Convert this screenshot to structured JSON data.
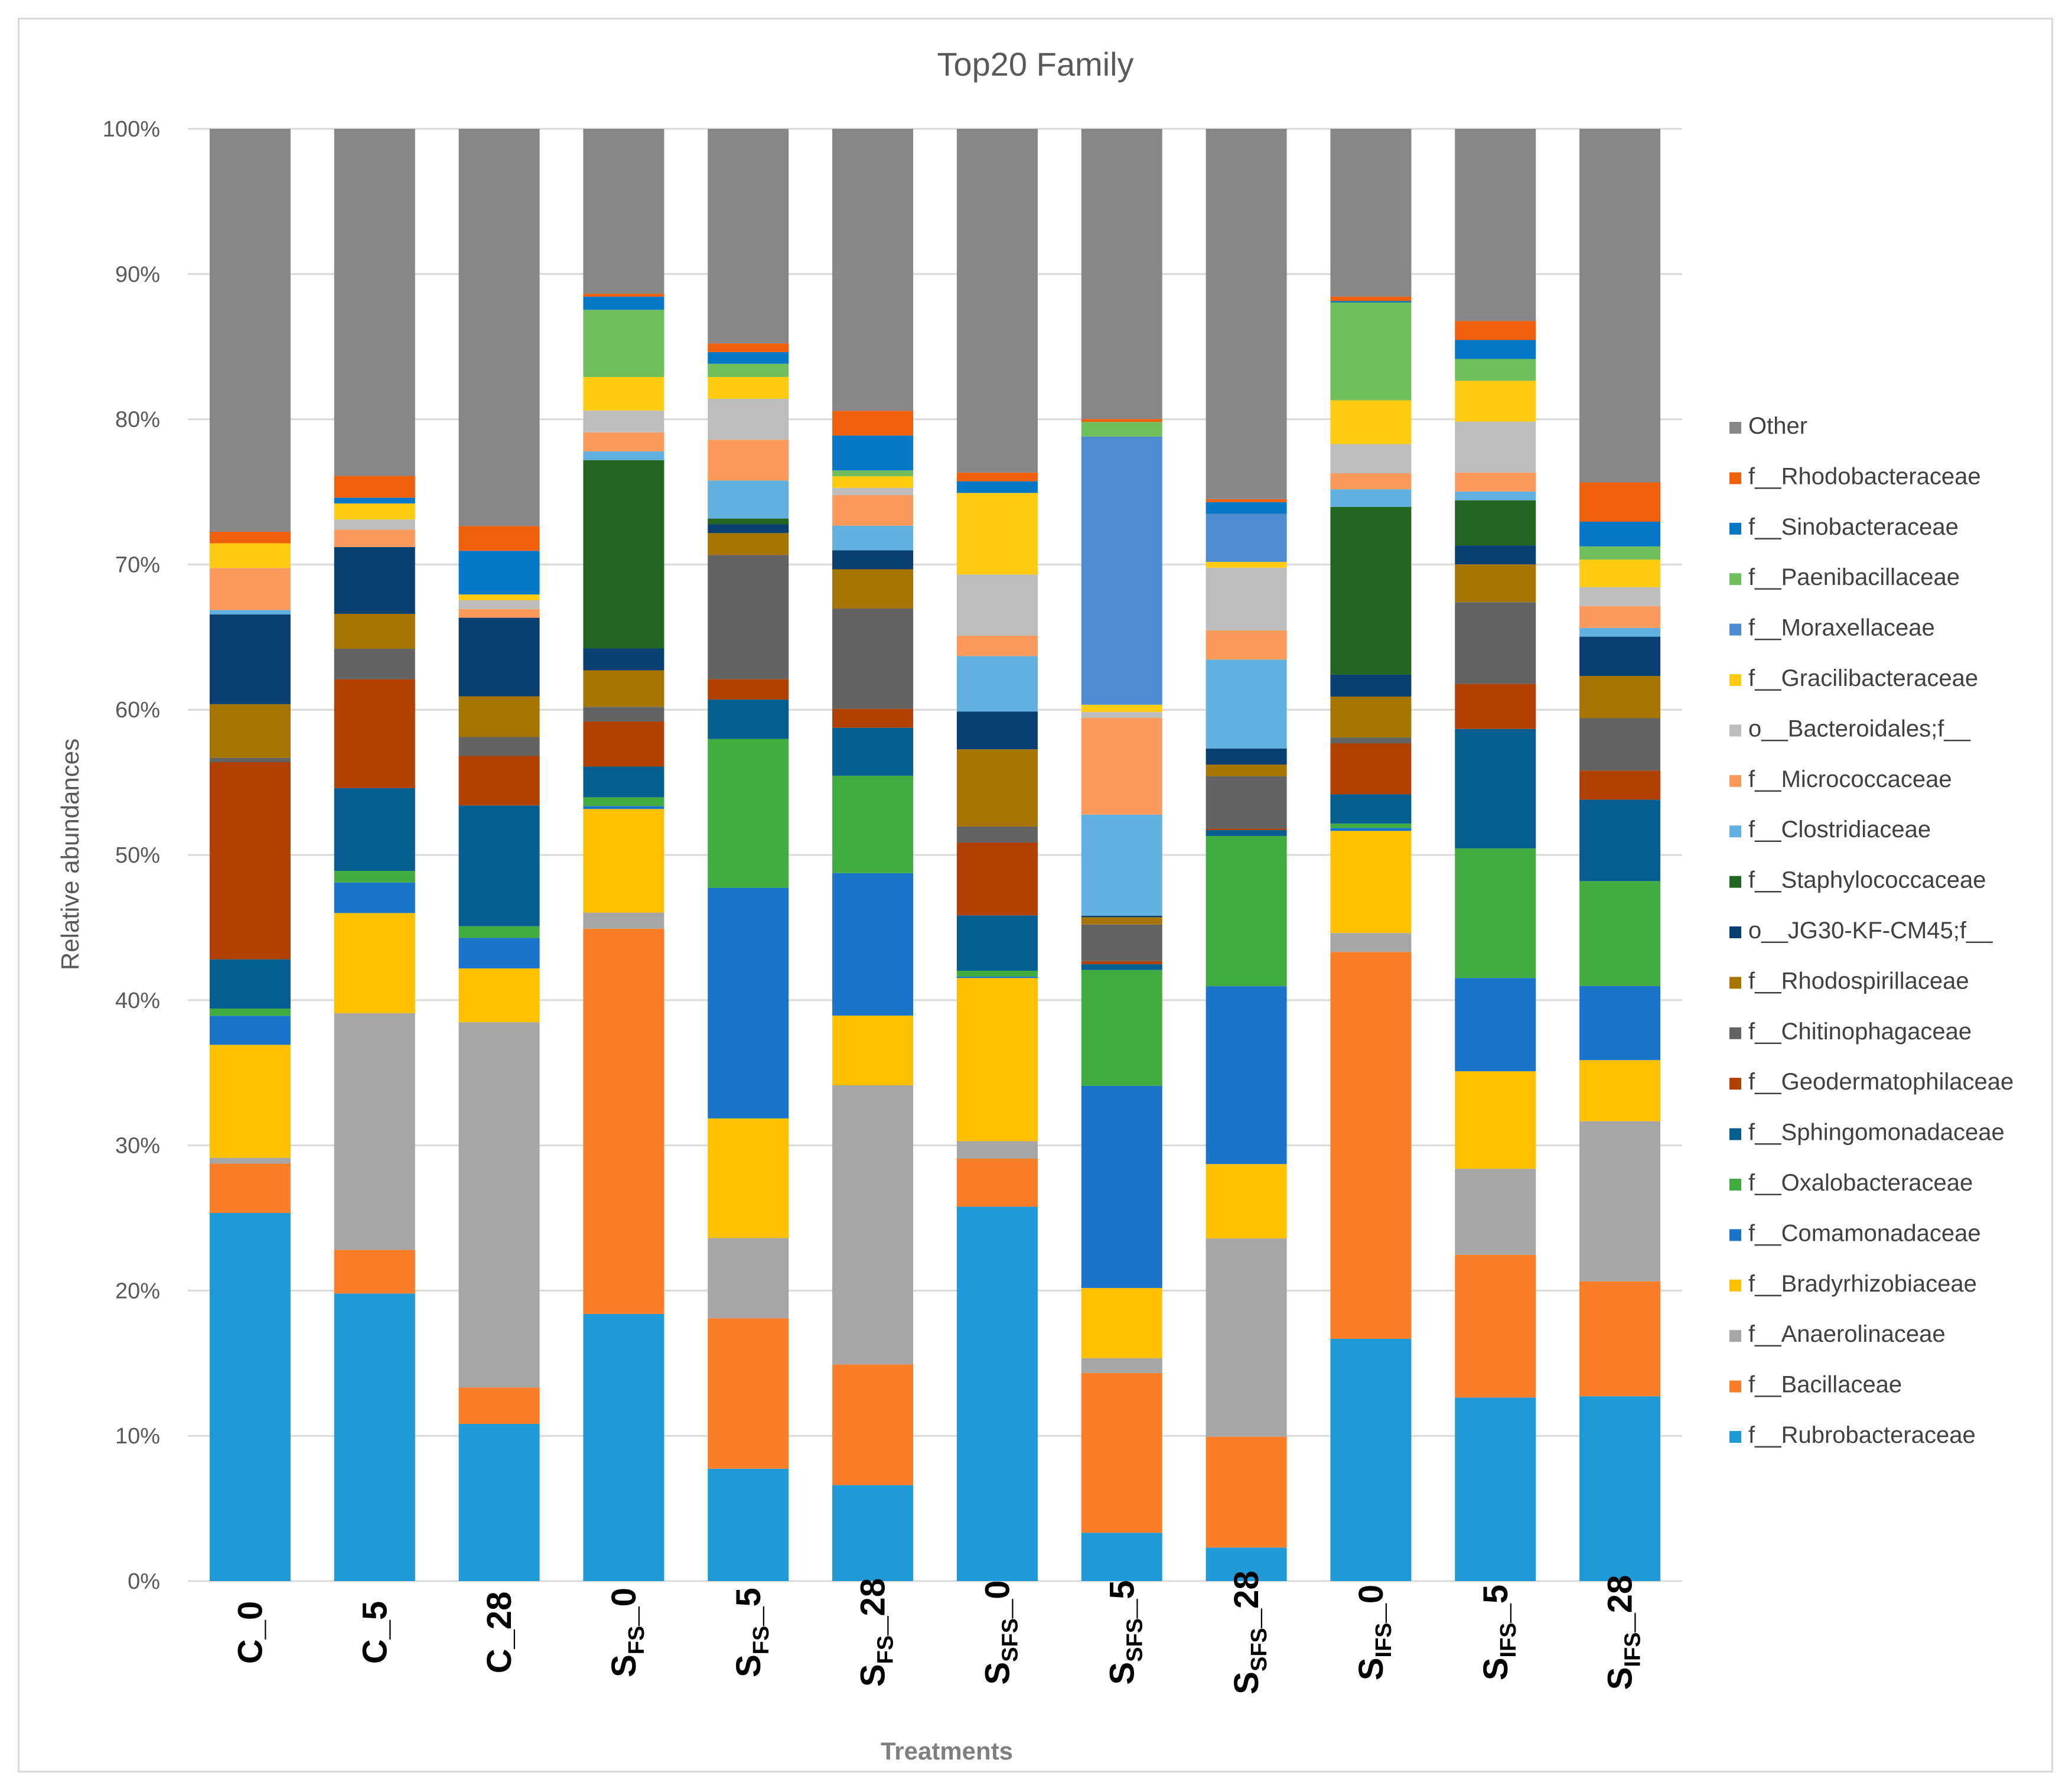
{
  "chart_data": {
    "type": "bar",
    "stacked": true,
    "percent": true,
    "title": "Top20 Family",
    "xlabel": "Treatments",
    "ylabel": "Relative abundances",
    "ylim": [
      0,
      100
    ],
    "yticks": [
      "0%",
      "10%",
      "20%",
      "30%",
      "40%",
      "50%",
      "60%",
      "70%",
      "80%",
      "90%",
      "100%"
    ],
    "grid": true,
    "legend_position": "right",
    "categories": [
      {
        "main": "C_0",
        "sub": "",
        "tail": ""
      },
      {
        "main": "C_5",
        "sub": "",
        "tail": ""
      },
      {
        "main": "C_28",
        "sub": "",
        "tail": ""
      },
      {
        "main": "S",
        "sub": "FS",
        "tail": "_0"
      },
      {
        "main": "S",
        "sub": "FS",
        "tail": "_5"
      },
      {
        "main": "S",
        "sub": "FS",
        "tail": "_28"
      },
      {
        "main": "S",
        "sub": "SFS",
        "tail": "_0"
      },
      {
        "main": "S",
        "sub": "SFS",
        "tail": "_5"
      },
      {
        "main": "S",
        "sub": "SFS",
        "tail": "_28"
      },
      {
        "main": "S",
        "sub": "IFS",
        "tail": "_0"
      },
      {
        "main": "S",
        "sub": "IFS",
        "tail": "_5"
      },
      {
        "main": "S",
        "sub": "IFS",
        "tail": "_28"
      }
    ],
    "series": [
      {
        "name": "f__Rubrobacteraceae",
        "color": "#1f9ad6",
        "values": [
          25.4,
          19.8,
          10.8,
          18.3,
          7.7,
          6.6,
          25.7,
          3.3,
          2.3,
          16.6,
          12.6,
          12.7
        ]
      },
      {
        "name": "f__Bacillaceae",
        "color": "#fb7d27",
        "values": [
          3.4,
          3.0,
          2.5,
          26.4,
          10.3,
          8.3,
          3.3,
          10.9,
          7.6,
          26.5,
          9.8,
          7.9
        ]
      },
      {
        "name": "f__Anaerolinaceae",
        "color": "#a6a6a6",
        "values": [
          0.4,
          16.3,
          25.1,
          1.1,
          5.5,
          19.2,
          1.2,
          1.0,
          13.6,
          1.3,
          5.9,
          11.0
        ]
      },
      {
        "name": "f__Bradyrhizobiaceae",
        "color": "#ffc000",
        "values": [
          7.8,
          6.9,
          3.7,
          7.1,
          8.2,
          4.8,
          11.2,
          4.8,
          5.1,
          7.0,
          6.7,
          4.2
        ]
      },
      {
        "name": "f__Comamonadaceae",
        "color": "#1a74c9",
        "values": [
          2.0,
          2.1,
          2.1,
          0.2,
          15.8,
          9.8,
          0.1,
          13.8,
          12.2,
          0.2,
          6.4,
          5.1
        ]
      },
      {
        "name": "f__Oxalobacteraceae",
        "color": "#41ad41",
        "values": [
          0.5,
          0.8,
          0.8,
          0.6,
          10.2,
          6.7,
          0.4,
          7.9,
          10.3,
          0.3,
          8.9,
          7.2
        ]
      },
      {
        "name": "f__Sphingomonadaceae",
        "color": "#055d90",
        "values": [
          3.4,
          5.7,
          8.3,
          2.1,
          2.7,
          3.3,
          3.8,
          0.4,
          0.4,
          2.0,
          8.2,
          5.6
        ]
      },
      {
        "name": "f__Geodermatophilaceae",
        "color": "#b04103",
        "values": [
          13.6,
          7.5,
          3.4,
          3.1,
          1.4,
          1.3,
          5.0,
          0.2,
          0.1,
          3.5,
          3.1,
          2.0
        ]
      },
      {
        "name": "f__Chitinophagaceae",
        "color": "#636363",
        "values": [
          0.3,
          2.1,
          1.3,
          1.0,
          8.5,
          6.9,
          1.1,
          2.5,
          3.6,
          0.4,
          5.6,
          3.6
        ]
      },
      {
        "name": "f__Rhodospirillaceae",
        "color": "#a67400",
        "values": [
          3.7,
          2.4,
          2.8,
          2.5,
          1.5,
          2.7,
          5.3,
          0.5,
          0.8,
          2.8,
          2.6,
          2.9
        ]
      },
      {
        "name": "o__JG30-KF-CM45;f__",
        "color": "#0a3f71",
        "values": [
          6.2,
          4.6,
          5.4,
          1.5,
          0.6,
          1.3,
          2.6,
          0.1,
          1.1,
          1.5,
          1.3,
          2.7
        ]
      },
      {
        "name": "f__Staphylococcaceae",
        "color": "#236622",
        "values": [
          0.0,
          0.0,
          0.0,
          12.9,
          0.4,
          0.0,
          0.0,
          0.0,
          0.0,
          11.5,
          3.1,
          0.0
        ]
      },
      {
        "name": "f__Clostridiaceae",
        "color": "#62b0e0",
        "values": [
          0.3,
          0.0,
          0.0,
          0.6,
          2.6,
          1.7,
          3.8,
          6.9,
          6.1,
          1.2,
          0.6,
          0.6
        ]
      },
      {
        "name": "f__Micrococcaceae",
        "color": "#fc9a5d",
        "values": [
          2.9,
          1.2,
          0.6,
          1.3,
          2.8,
          2.1,
          1.4,
          6.6,
          2.0,
          1.1,
          1.3,
          1.5
        ]
      },
      {
        "name": "o__Bacteroidales;f__",
        "color": "#bdbdbd",
        "values": [
          0.0,
          0.7,
          0.6,
          1.5,
          2.8,
          0.5,
          4.2,
          0.4,
          4.3,
          2.0,
          3.5,
          1.3
        ]
      },
      {
        "name": "f__Gracilibacteraceae",
        "color": "#ffcc12",
        "values": [
          1.7,
          1.1,
          0.4,
          2.3,
          1.5,
          0.8,
          5.6,
          0.5,
          0.4,
          3.0,
          2.8,
          1.9
        ]
      },
      {
        "name": "f__Moraxellaceae",
        "color": "#4e8bd0",
        "values": [
          0.0,
          0.0,
          0.0,
          0.0,
          0.0,
          0.0,
          0.0,
          18.3,
          3.3,
          0.0,
          0.0,
          0.0
        ]
      },
      {
        "name": "f__Paenibacillaceae",
        "color": "#70bf5c",
        "values": [
          0.0,
          0.0,
          0.0,
          4.6,
          0.9,
          0.4,
          0.0,
          1.0,
          0.0,
          6.7,
          1.5,
          0.9
        ]
      },
      {
        "name": "f__Sinobacteraceae",
        "color": "#0778c7",
        "values": [
          0.0,
          0.4,
          3.0,
          0.9,
          0.8,
          2.4,
          0.8,
          0.0,
          0.8,
          0.1,
          1.3,
          1.7
        ]
      },
      {
        "name": "f__Rhodobacteraceae",
        "color": "#ef600d",
        "values": [
          0.8,
          1.5,
          1.7,
          0.2,
          0.6,
          1.7,
          0.6,
          0.2,
          0.2,
          0.3,
          1.3,
          2.7
        ]
      },
      {
        "name": "Other",
        "color": "#878787",
        "values": [
          27.8,
          23.9,
          27.3,
          11.3,
          14.7,
          19.4,
          23.6,
          19.8,
          25.4,
          11.5,
          13.2,
          24.3
        ]
      }
    ]
  }
}
